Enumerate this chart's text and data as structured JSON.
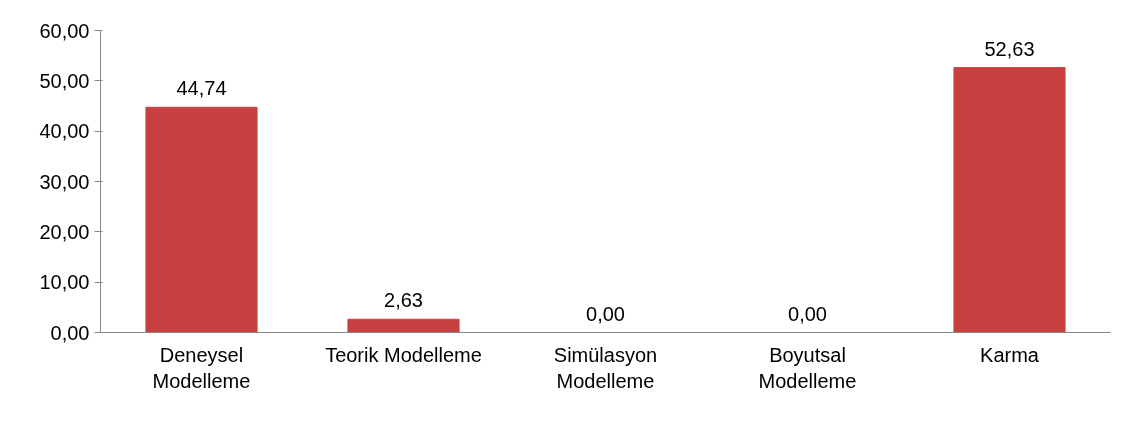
{
  "chart_data": {
    "type": "bar",
    "categories": [
      "Deneysel Modelleme",
      "Teorik Modelleme",
      "Simülasyon Modelleme",
      "Boyutsal Modelleme",
      "Karma"
    ],
    "values": [
      44.74,
      2.63,
      0,
      0,
      52.63
    ],
    "value_labels": [
      "44,74",
      "2,63",
      "0,00",
      "0,00",
      "52,63"
    ],
    "color": "#c8403f",
    "ylim": [
      0,
      60
    ],
    "yticks": [
      {
        "value": 0,
        "label": "0,00"
      },
      {
        "value": 10,
        "label": "10,00"
      },
      {
        "value": 20,
        "label": "20,00"
      },
      {
        "value": 30,
        "label": "30,00"
      },
      {
        "value": 40,
        "label": "40,00"
      },
      {
        "value": 50,
        "label": "50,00"
      },
      {
        "value": 60,
        "label": "60,00"
      }
    ],
    "grid": false,
    "legend": false
  }
}
